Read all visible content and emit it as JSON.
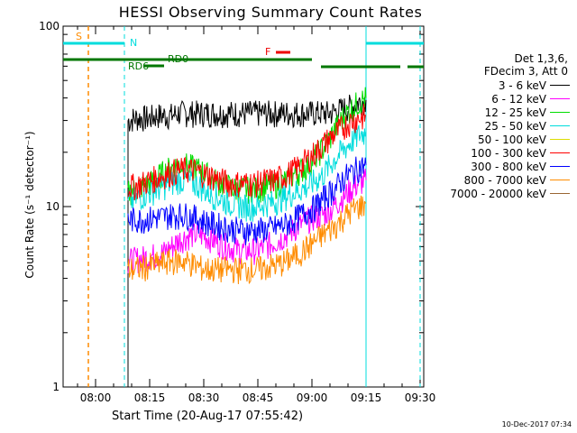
{
  "title": "HESSI Observing Summary Count Rates",
  "xlabel": "Start Time (20-Aug-17 07:55:42)",
  "ylabel": "Count Rate (s⁻¹ detector⁻¹)",
  "footer": "10-Dec-2017 07:34",
  "legend_header": [
    "Det 1,3,6,",
    "FDecim 3, Att 0"
  ],
  "chart_data": {
    "type": "line",
    "title": "HESSI Observing Summary Count Rates",
    "xlabel": "Start Time (20-Aug-17 07:55:42)",
    "ylabel": "Count Rate (s^-1 detector^-1)",
    "xlim_min": [
      -4,
      96
    ],
    "ylim": [
      1,
      100
    ],
    "yscale": "log",
    "x_ticks": [
      5,
      20,
      35,
      50,
      65,
      80,
      95
    ],
    "x_tick_labels": [
      "08:00",
      "08:15",
      "08:30",
      "08:45",
      "09:00",
      "09:15",
      "09:30"
    ],
    "y_ticks": [
      1,
      10,
      100
    ],
    "y_tick_labels": [
      "1",
      "10",
      "100"
    ],
    "legend_position": "right",
    "x_min": [
      14,
      16,
      18,
      20,
      22,
      24,
      26,
      28,
      30,
      32,
      34,
      36,
      38,
      40,
      42,
      44,
      46,
      48,
      50,
      52,
      54,
      56,
      58,
      60,
      62,
      64,
      66,
      68,
      70,
      72,
      74,
      76,
      78,
      80
    ],
    "series": [
      {
        "name": "3 - 6 keV",
        "color": "#000000",
        "values": [
          30,
          31,
          31,
          31,
          32,
          32,
          32,
          33,
          33,
          33,
          33,
          33,
          33,
          33,
          33,
          33,
          33,
          33,
          33,
          33,
          33,
          33,
          33,
          33,
          33,
          33,
          33,
          33,
          33,
          34,
          35,
          36,
          38,
          39
        ]
      },
      {
        "name": "6 - 12 keV",
        "color": "#ff00ff",
        "values": [
          5.0,
          5.1,
          5.2,
          5.3,
          5.4,
          5.6,
          6.0,
          6.5,
          6.8,
          7.0,
          7.0,
          6.8,
          6.5,
          6.2,
          6.0,
          5.8,
          5.7,
          5.7,
          5.8,
          6.0,
          6.3,
          6.6,
          7.0,
          7.5,
          8.0,
          8.5,
          8.8,
          9.0,
          9.5,
          10.5,
          11.5,
          12.5,
          13.5,
          14.0
        ]
      },
      {
        "name": "12 - 25 keV",
        "color": "#00dd00",
        "values": [
          12,
          12.5,
          13,
          13.5,
          14.5,
          15.5,
          16.5,
          17,
          17,
          16.5,
          16,
          15,
          14,
          13.5,
          13,
          12.5,
          12.5,
          12.5,
          12.5,
          13,
          13,
          13.5,
          14,
          15,
          16,
          17,
          19,
          21,
          24,
          28,
          32,
          35,
          38,
          40
        ]
      },
      {
        "name": "25 - 50 keV",
        "color": "#00dddd",
        "values": [
          10.5,
          11,
          11.5,
          12,
          12.5,
          13,
          13.5,
          14,
          14,
          13.5,
          13,
          12,
          11.5,
          11,
          10.5,
          10.5,
          10,
          10,
          10,
          10.5,
          10.5,
          11,
          11.5,
          12,
          12.5,
          13,
          14,
          15,
          17,
          19,
          21,
          23,
          25,
          26
        ]
      },
      {
        "name": "50 - 100 keV",
        "color": "#dddd00",
        "values": []
      },
      {
        "name": "100 - 300 keV",
        "color": "#ff0000",
        "values": [
          13,
          13,
          13.5,
          14,
          14.5,
          15,
          15.5,
          16,
          16,
          16,
          15.5,
          15,
          14.5,
          14,
          13.5,
          13.5,
          13.5,
          13.5,
          13.5,
          14,
          14,
          14.5,
          15,
          16,
          17,
          18.5,
          20,
          22,
          24,
          26,
          28,
          30,
          31,
          32
        ]
      },
      {
        "name": "300 - 800 keV",
        "color": "#0000ff",
        "values": [
          8.5,
          8.5,
          8.5,
          8.6,
          8.7,
          8.8,
          9.0,
          9.0,
          9.0,
          8.8,
          8.5,
          8.2,
          8.0,
          7.8,
          7.6,
          7.5,
          7.4,
          7.4,
          7.4,
          7.5,
          7.6,
          7.8,
          8.0,
          8.5,
          9.0,
          9.5,
          10,
          11,
          12,
          13,
          14.5,
          15.5,
          16.5,
          17
        ]
      },
      {
        "name": "800 - 7000 keV",
        "color": "#ff8c00",
        "values": [
          4.5,
          4.5,
          4.6,
          4.7,
          4.8,
          4.9,
          5.0,
          5.0,
          5.0,
          4.8,
          4.6,
          4.5,
          4.5,
          4.5,
          4.5,
          4.5,
          4.5,
          4.5,
          4.5,
          4.6,
          4.7,
          4.8,
          5.0,
          5.3,
          5.6,
          6.0,
          6.5,
          7.0,
          7.5,
          8.0,
          8.8,
          9.5,
          10.0,
          10.5
        ]
      },
      {
        "name": "7000 - 20000 keV",
        "color": "#996633",
        "values": []
      }
    ],
    "attenuator_bars": [
      {
        "label": "S",
        "color": "#ff8c00",
        "x": 3
      },
      {
        "label": "N",
        "color": "#00dddd",
        "x": 13,
        "kind": "night-start"
      },
      {
        "label": "",
        "color": "#00dddd",
        "x": 80,
        "kind": "night-end"
      },
      {
        "label": "",
        "color": "#00dddd",
        "x": 95,
        "kind": "night-end"
      }
    ],
    "flags": [
      {
        "label": "RD0",
        "color": "#007700",
        "segments": [
          [
            -4,
            65
          ],
          [
            67.5,
            89.5
          ],
          [
            91.5,
            96
          ]
        ]
      },
      {
        "label": "RD6",
        "color": "#007700",
        "segments": [
          [
            18.5,
            24
          ]
        ]
      },
      {
        "label": "F",
        "color": "#ee0000",
        "segments": [
          [
            55,
            59
          ]
        ]
      },
      {
        "label": "N",
        "color": "#00dddd",
        "segments": [
          [
            -4,
            13
          ],
          [
            80,
            96
          ]
        ]
      }
    ]
  }
}
